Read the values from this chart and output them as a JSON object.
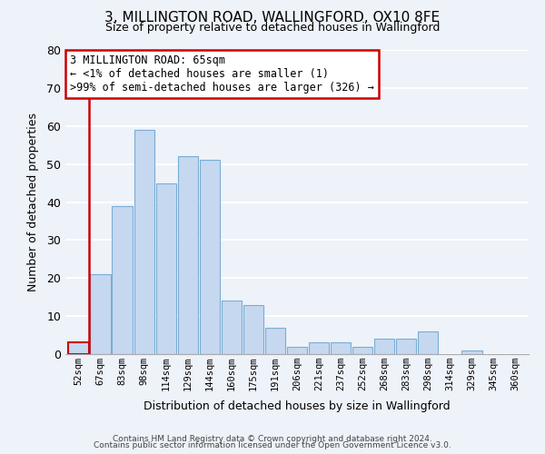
{
  "title1": "3, MILLINGTON ROAD, WALLINGFORD, OX10 8FE",
  "title2": "Size of property relative to detached houses in Wallingford",
  "xlabel": "Distribution of detached houses by size in Wallingford",
  "ylabel": "Number of detached properties",
  "bar_labels": [
    "52sqm",
    "67sqm",
    "83sqm",
    "98sqm",
    "114sqm",
    "129sqm",
    "144sqm",
    "160sqm",
    "175sqm",
    "191sqm",
    "206sqm",
    "221sqm",
    "237sqm",
    "252sqm",
    "268sqm",
    "283sqm",
    "298sqm",
    "314sqm",
    "329sqm",
    "345sqm",
    "360sqm"
  ],
  "bar_values": [
    3,
    21,
    39,
    59,
    45,
    52,
    51,
    14,
    13,
    7,
    2,
    3,
    3,
    2,
    4,
    4,
    6,
    0,
    1,
    0,
    0
  ],
  "bar_color": "#c5d8f0",
  "bar_edge_color": "#7aadd4",
  "highlight_color": "#cc0000",
  "ylim": [
    0,
    80
  ],
  "yticks": [
    0,
    10,
    20,
    30,
    40,
    50,
    60,
    70,
    80
  ],
  "annotation_title": "3 MILLINGTON ROAD: 65sqm",
  "annotation_line1": "← <1% of detached houses are smaller (1)",
  "annotation_line2": ">99% of semi-detached houses are larger (326) →",
  "annotation_box_color": "#ffffff",
  "annotation_box_edge": "#cc0000",
  "footer1": "Contains HM Land Registry data © Crown copyright and database right 2024.",
  "footer2": "Contains public sector information licensed under the Open Government Licence v3.0.",
  "bg_color": "#eef2f9",
  "grid_color": "#ffffff"
}
